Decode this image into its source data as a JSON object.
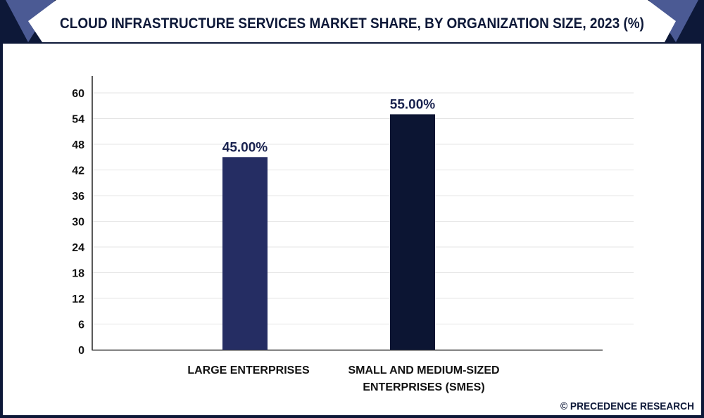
{
  "chart_data": {
    "type": "bar",
    "title": "CLOUD INFRASTRUCTURE SERVICES MARKET SHARE, BY ORGANIZATION SIZE, 2023 (%)",
    "categories": [
      "LARGE ENTERPRISES",
      "SMALL AND MEDIUM-SIZED ENTERPRISES (SMES)"
    ],
    "category_lines": [
      [
        "LARGE ENTERPRISES"
      ],
      [
        "SMALL AND MEDIUM-SIZED",
        "ENTERPRISES (SMES)"
      ]
    ],
    "values": [
      45,
      55
    ],
    "data_labels": [
      "45.00%",
      "55.00%"
    ],
    "bar_colors": [
      "#252d63",
      "#0c1533"
    ],
    "xlabel": "",
    "ylabel": "",
    "ylim": [
      0,
      60
    ],
    "yticks": [
      "0",
      "6",
      "12",
      "18",
      "24",
      "30",
      "36",
      "42",
      "48",
      "54",
      "60"
    ],
    "grid": true,
    "legend": "none"
  },
  "footer": {
    "credit": "© PRECEDENCE RESEARCH"
  },
  "colors": {
    "frame": "#0d1838",
    "accent": "#4b5a94",
    "grid": "#e4e4e4"
  }
}
